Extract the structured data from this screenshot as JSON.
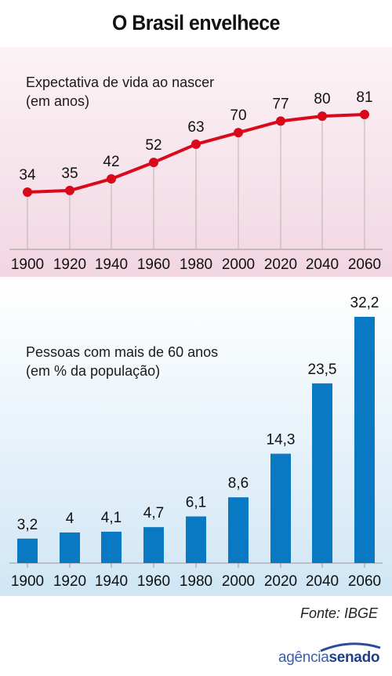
{
  "title": "O Brasil envelhece",
  "source": "Fonte: IBGE",
  "logo": {
    "part1": "agência",
    "part2": "senado"
  },
  "colors": {
    "line": "#d9091a",
    "bar": "#0a79c4",
    "top_bg": "#f2d6e2",
    "bottom_bg": "#d0e6f5"
  },
  "chart_data": [
    {
      "type": "line",
      "title": "Expectativa de vida ao nascer (em anos)",
      "x": [
        "1900",
        "1920",
        "1940",
        "1960",
        "1980",
        "2000",
        "2020",
        "2040",
        "2060"
      ],
      "values": [
        34,
        35,
        42,
        52,
        63,
        70,
        77,
        80,
        81
      ],
      "value_labels": [
        "34",
        "35",
        "42",
        "52",
        "63",
        "70",
        "77",
        "80",
        "81"
      ],
      "ylim": [
        30,
        85
      ],
      "grid": "vertical drop lines"
    },
    {
      "type": "bar",
      "title": "Pessoas com mais de 60 anos (em % da população)",
      "categories": [
        "1900",
        "1920",
        "1940",
        "1960",
        "1980",
        "2000",
        "2020",
        "2040",
        "2060"
      ],
      "values": [
        3.2,
        4,
        4.1,
        4.7,
        6.1,
        8.6,
        14.3,
        23.5,
        32.2
      ],
      "value_labels": [
        "3,2",
        "4",
        "4,1",
        "4,7",
        "6,1",
        "8,6",
        "14,3",
        "23,5",
        "32,2"
      ],
      "ylim": [
        0,
        32.2
      ]
    }
  ]
}
